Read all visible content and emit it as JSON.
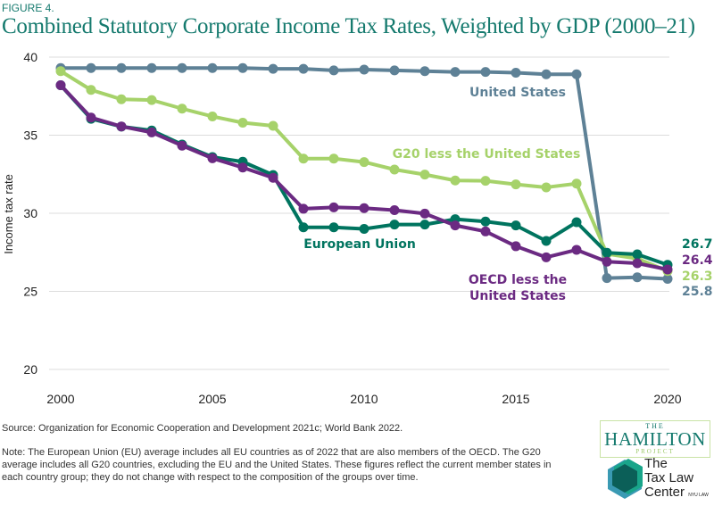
{
  "figure_label": "FIGURE 4.",
  "title": "Combined Statutory Corporate Income Tax Rates, Weighted by GDP (2000–21)",
  "source": "Source: Organization for Economic Cooperation and Development 2021c; World Bank 2022.",
  "note": "Note: The European Union (EU) average includes all EU countries as of 2022 that are also members of the OECD. The G20 average includes all G20 countries, excluding the EU and the United States. These figures reflect the current member states in each country group; they do not change with respect to the composition of the groups over time.",
  "logos": {
    "hamilton_top": "THE",
    "hamilton_main": "HAMILTON",
    "hamilton_bottom": "PROJECT",
    "taxlaw_lines": [
      "The",
      "Tax Law",
      "Center"
    ],
    "taxlaw_small": "NYU LAW"
  },
  "chart_data": {
    "type": "line",
    "title": "Combined Statutory Corporate Income Tax Rates, Weighted by GDP (2000–21)",
    "xlabel": "",
    "ylabel": "Income tax rate",
    "ylim": [
      20,
      40
    ],
    "xlim": [
      2000,
      2020
    ],
    "yticks": [
      20,
      25,
      30,
      35,
      40
    ],
    "xticks": [
      2000,
      2005,
      2010,
      2015,
      2020
    ],
    "grid": true,
    "legend": "inline labels",
    "x": [
      2000,
      2001,
      2002,
      2003,
      2004,
      2005,
      2006,
      2007,
      2008,
      2009,
      2010,
      2011,
      2012,
      2013,
      2014,
      2015,
      2016,
      2017,
      2018,
      2019,
      2020
    ],
    "series": [
      {
        "name": "United States",
        "color": "#5e8196",
        "end_label": "25.8",
        "values": [
          39.3,
          39.3,
          39.3,
          39.3,
          39.3,
          39.3,
          39.3,
          39.25,
          39.25,
          39.15,
          39.2,
          39.15,
          39.1,
          39.05,
          39.05,
          39.0,
          38.9,
          38.9,
          25.85,
          25.9,
          25.8
        ]
      },
      {
        "name": "G20 less the United States",
        "color": "#a6d26a",
        "end_label": "26.3",
        "values": [
          39.1,
          37.9,
          37.3,
          37.25,
          36.7,
          36.2,
          35.8,
          35.6,
          33.5,
          33.5,
          33.28,
          32.8,
          32.48,
          32.1,
          32.08,
          31.85,
          31.66,
          31.9,
          27.4,
          27.1,
          26.3
        ]
      },
      {
        "name": "European Union",
        "color": "#00745f",
        "end_label": "26.7",
        "values": [
          38.2,
          36.05,
          35.55,
          35.3,
          34.4,
          33.6,
          33.3,
          32.45,
          29.1,
          29.1,
          29.0,
          29.28,
          29.28,
          29.62,
          29.47,
          29.22,
          28.23,
          29.43,
          27.47,
          27.37,
          26.7
        ]
      },
      {
        "name": "OECD less the United States",
        "color": "#6b2a82",
        "end_label": "26.4",
        "values": [
          38.2,
          36.13,
          35.56,
          35.18,
          34.33,
          33.52,
          32.93,
          32.27,
          30.29,
          30.38,
          30.33,
          30.2,
          29.98,
          29.22,
          28.84,
          27.89,
          27.18,
          27.66,
          26.9,
          26.8,
          26.4
        ]
      }
    ]
  }
}
